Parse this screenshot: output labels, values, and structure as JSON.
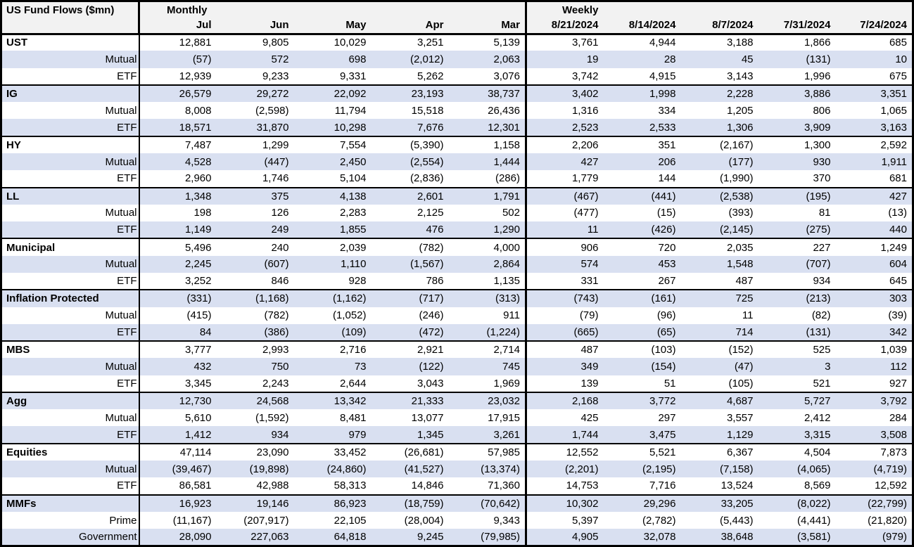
{
  "title": "US Fund Flows ($mn)",
  "header": {
    "monthly_label": "Monthly",
    "weekly_label": "Weekly",
    "monthly_columns": [
      "Jul",
      "Jun",
      "May",
      "Apr",
      "Mar"
    ],
    "weekly_columns": [
      "8/21/2024",
      "8/14/2024",
      "8/7/2024",
      "7/31/2024",
      "7/24/2024"
    ]
  },
  "colors": {
    "alt_row": "#d9e0f1",
    "header_bg": "#f2f2f2",
    "border": "#000000",
    "text": "#000000"
  },
  "groups": [
    {
      "name": "UST",
      "rows": [
        {
          "label": "UST",
          "monthly": [
            "12,881",
            "9,805",
            "10,029",
            "3,251",
            "5,139"
          ],
          "weekly": [
            "3,761",
            "4,944",
            "3,188",
            "1,866",
            "685"
          ]
        },
        {
          "label": "Mutual",
          "monthly": [
            "(57)",
            "572",
            "698",
            "(2,012)",
            "2,063"
          ],
          "weekly": [
            "19",
            "28",
            "45",
            "(131)",
            "10"
          ]
        },
        {
          "label": "ETF",
          "monthly": [
            "12,939",
            "9,233",
            "9,331",
            "5,262",
            "3,076"
          ],
          "weekly": [
            "3,742",
            "4,915",
            "3,143",
            "1,996",
            "675"
          ]
        }
      ]
    },
    {
      "name": "IG",
      "rows": [
        {
          "label": "IG",
          "monthly": [
            "26,579",
            "29,272",
            "22,092",
            "23,193",
            "38,737"
          ],
          "weekly": [
            "3,402",
            "1,998",
            "2,228",
            "3,886",
            "3,351"
          ]
        },
        {
          "label": "Mutual",
          "monthly": [
            "8,008",
            "(2,598)",
            "11,794",
            "15,518",
            "26,436"
          ],
          "weekly": [
            "1,316",
            "334",
            "1,205",
            "806",
            "1,065"
          ]
        },
        {
          "label": "ETF",
          "monthly": [
            "18,571",
            "31,870",
            "10,298",
            "7,676",
            "12,301"
          ],
          "weekly": [
            "2,523",
            "2,533",
            "1,306",
            "3,909",
            "3,163"
          ]
        }
      ]
    },
    {
      "name": "HY",
      "rows": [
        {
          "label": "HY",
          "monthly": [
            "7,487",
            "1,299",
            "7,554",
            "(5,390)",
            "1,158"
          ],
          "weekly": [
            "2,206",
            "351",
            "(2,167)",
            "1,300",
            "2,592"
          ]
        },
        {
          "label": "Mutual",
          "monthly": [
            "4,528",
            "(447)",
            "2,450",
            "(2,554)",
            "1,444"
          ],
          "weekly": [
            "427",
            "206",
            "(177)",
            "930",
            "1,911"
          ]
        },
        {
          "label": "ETF",
          "monthly": [
            "2,960",
            "1,746",
            "5,104",
            "(2,836)",
            "(286)"
          ],
          "weekly": [
            "1,779",
            "144",
            "(1,990)",
            "370",
            "681"
          ]
        }
      ]
    },
    {
      "name": "LL",
      "rows": [
        {
          "label": "LL",
          "monthly": [
            "1,348",
            "375",
            "4,138",
            "2,601",
            "1,791"
          ],
          "weekly": [
            "(467)",
            "(441)",
            "(2,538)",
            "(195)",
            "427"
          ]
        },
        {
          "label": "Mutual",
          "monthly": [
            "198",
            "126",
            "2,283",
            "2,125",
            "502"
          ],
          "weekly": [
            "(477)",
            "(15)",
            "(393)",
            "81",
            "(13)"
          ]
        },
        {
          "label": "ETF",
          "monthly": [
            "1,149",
            "249",
            "1,855",
            "476",
            "1,290"
          ],
          "weekly": [
            "11",
            "(426)",
            "(2,145)",
            "(275)",
            "440"
          ]
        }
      ]
    },
    {
      "name": "Municipal",
      "rows": [
        {
          "label": "Municipal",
          "monthly": [
            "5,496",
            "240",
            "2,039",
            "(782)",
            "4,000"
          ],
          "weekly": [
            "906",
            "720",
            "2,035",
            "227",
            "1,249"
          ]
        },
        {
          "label": "Mutual",
          "monthly": [
            "2,245",
            "(607)",
            "1,110",
            "(1,567)",
            "2,864"
          ],
          "weekly": [
            "574",
            "453",
            "1,548",
            "(707)",
            "604"
          ]
        },
        {
          "label": "ETF",
          "monthly": [
            "3,252",
            "846",
            "928",
            "786",
            "1,135"
          ],
          "weekly": [
            "331",
            "267",
            "487",
            "934",
            "645"
          ]
        }
      ]
    },
    {
      "name": "Inflation Protected",
      "rows": [
        {
          "label": "Inflation Protected",
          "monthly": [
            "(331)",
            "(1,168)",
            "(1,162)",
            "(717)",
            "(313)"
          ],
          "weekly": [
            "(743)",
            "(161)",
            "725",
            "(213)",
            "303"
          ]
        },
        {
          "label": "Mutual",
          "monthly": [
            "(415)",
            "(782)",
            "(1,052)",
            "(246)",
            "911"
          ],
          "weekly": [
            "(79)",
            "(96)",
            "11",
            "(82)",
            "(39)"
          ]
        },
        {
          "label": "ETF",
          "monthly": [
            "84",
            "(386)",
            "(109)",
            "(472)",
            "(1,224)"
          ],
          "weekly": [
            "(665)",
            "(65)",
            "714",
            "(131)",
            "342"
          ]
        }
      ]
    },
    {
      "name": "MBS",
      "rows": [
        {
          "label": "MBS",
          "monthly": [
            "3,777",
            "2,993",
            "2,716",
            "2,921",
            "2,714"
          ],
          "weekly": [
            "487",
            "(103)",
            "(152)",
            "525",
            "1,039"
          ]
        },
        {
          "label": "Mutual",
          "monthly": [
            "432",
            "750",
            "73",
            "(122)",
            "745"
          ],
          "weekly": [
            "349",
            "(154)",
            "(47)",
            "3",
            "112"
          ]
        },
        {
          "label": "ETF",
          "monthly": [
            "3,345",
            "2,243",
            "2,644",
            "3,043",
            "1,969"
          ],
          "weekly": [
            "139",
            "51",
            "(105)",
            "521",
            "927"
          ]
        }
      ]
    },
    {
      "name": "Agg",
      "rows": [
        {
          "label": "Agg",
          "monthly": [
            "12,730",
            "24,568",
            "13,342",
            "21,333",
            "23,032"
          ],
          "weekly": [
            "2,168",
            "3,772",
            "4,687",
            "5,727",
            "3,792"
          ]
        },
        {
          "label": "Mutual",
          "monthly": [
            "5,610",
            "(1,592)",
            "8,481",
            "13,077",
            "17,915"
          ],
          "weekly": [
            "425",
            "297",
            "3,557",
            "2,412",
            "284"
          ]
        },
        {
          "label": "ETF",
          "monthly": [
            "1,412",
            "934",
            "979",
            "1,345",
            "3,261"
          ],
          "weekly": [
            "1,744",
            "3,475",
            "1,129",
            "3,315",
            "3,508"
          ]
        }
      ]
    },
    {
      "name": "Equities",
      "rows": [
        {
          "label": "Equities",
          "monthly": [
            "47,114",
            "23,090",
            "33,452",
            "(26,681)",
            "57,985"
          ],
          "weekly": [
            "12,552",
            "5,521",
            "6,367",
            "4,504",
            "7,873"
          ]
        },
        {
          "label": "Mutual",
          "monthly": [
            "(39,467)",
            "(19,898)",
            "(24,860)",
            "(41,527)",
            "(13,374)"
          ],
          "weekly": [
            "(2,201)",
            "(2,195)",
            "(7,158)",
            "(4,065)",
            "(4,719)"
          ]
        },
        {
          "label": "ETF",
          "monthly": [
            "86,581",
            "42,988",
            "58,313",
            "14,846",
            "71,360"
          ],
          "weekly": [
            "14,753",
            "7,716",
            "13,524",
            "8,569",
            "12,592"
          ]
        }
      ]
    },
    {
      "name": "MMFs",
      "rows": [
        {
          "label": "MMFs",
          "monthly": [
            "16,923",
            "19,146",
            "86,923",
            "(18,759)",
            "(70,642)"
          ],
          "weekly": [
            "10,302",
            "29,296",
            "33,205",
            "(8,022)",
            "(22,799)"
          ]
        },
        {
          "label": "Prime",
          "monthly": [
            "(11,167)",
            "(207,917)",
            "22,105",
            "(28,004)",
            "9,343"
          ],
          "weekly": [
            "5,397",
            "(2,782)",
            "(5,443)",
            "(4,441)",
            "(21,820)"
          ]
        },
        {
          "label": "Government",
          "monthly": [
            "28,090",
            "227,063",
            "64,818",
            "9,245",
            "(79,985)"
          ],
          "weekly": [
            "4,905",
            "32,078",
            "38,648",
            "(3,581)",
            "(979)"
          ]
        }
      ]
    }
  ]
}
